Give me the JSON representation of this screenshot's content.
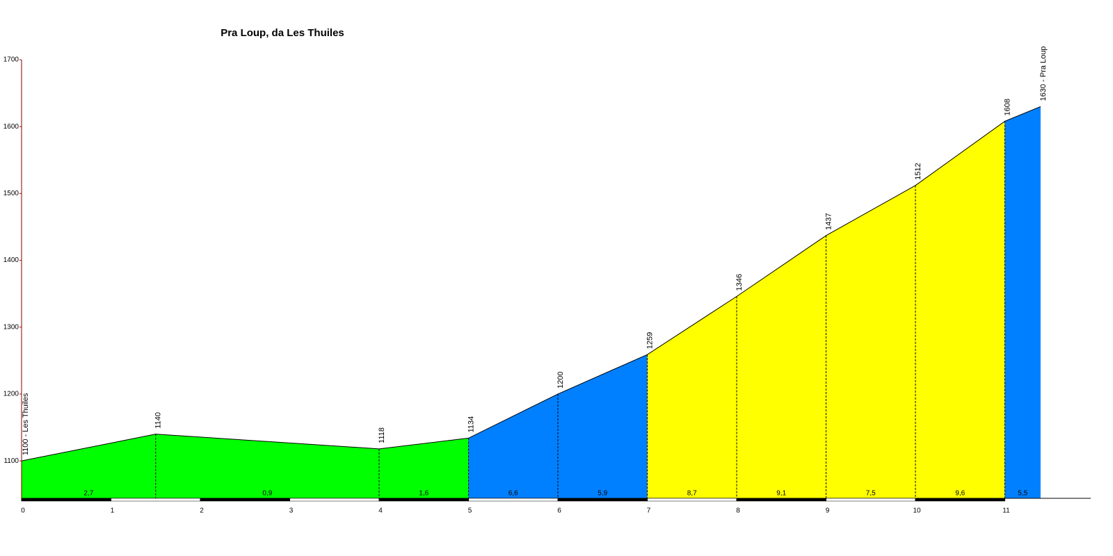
{
  "chart_data": {
    "type": "area",
    "title": "Pra Loup, da Les Thuiles",
    "x": [
      0,
      1.5,
      4,
      5,
      6,
      7,
      8,
      9,
      10,
      11,
      11.4
    ],
    "values": [
      1100,
      1140,
      1118,
      1134,
      1200,
      1259,
      1346,
      1437,
      1512,
      1608,
      1630
    ],
    "value_labels": [
      "1100 - Les Thuiles",
      "1140",
      "1118",
      "1134",
      "1200",
      "1259",
      "1346",
      "1437",
      "1512",
      "1608",
      "1630 - Pra Loup"
    ],
    "grades": [
      2.7,
      0.9,
      1.6,
      6.6,
      5.9,
      8.7,
      9.1,
      7.5,
      9.6,
      5.5
    ],
    "grade_labels": [
      "2,7",
      "0,9",
      "1,6",
      "6,6",
      "5,9",
      "8,7",
      "9,1",
      "7,5",
      "9,6",
      "5,5"
    ],
    "segment_colors": [
      "#00ff00",
      "#00ff00",
      "#00ff00",
      "#0080ff",
      "#0080ff",
      "#ffff00",
      "#ffff00",
      "#ffff00",
      "#ffff00",
      "#0080ff"
    ],
    "xlim": [
      0,
      12
    ],
    "ylim": [
      1044,
      1700
    ],
    "xticks": [
      0,
      1,
      2,
      3,
      4,
      5,
      6,
      7,
      8,
      9,
      10,
      11
    ],
    "yticks": [
      1100,
      1200,
      1300,
      1400,
      1500,
      1600,
      1700
    ]
  }
}
